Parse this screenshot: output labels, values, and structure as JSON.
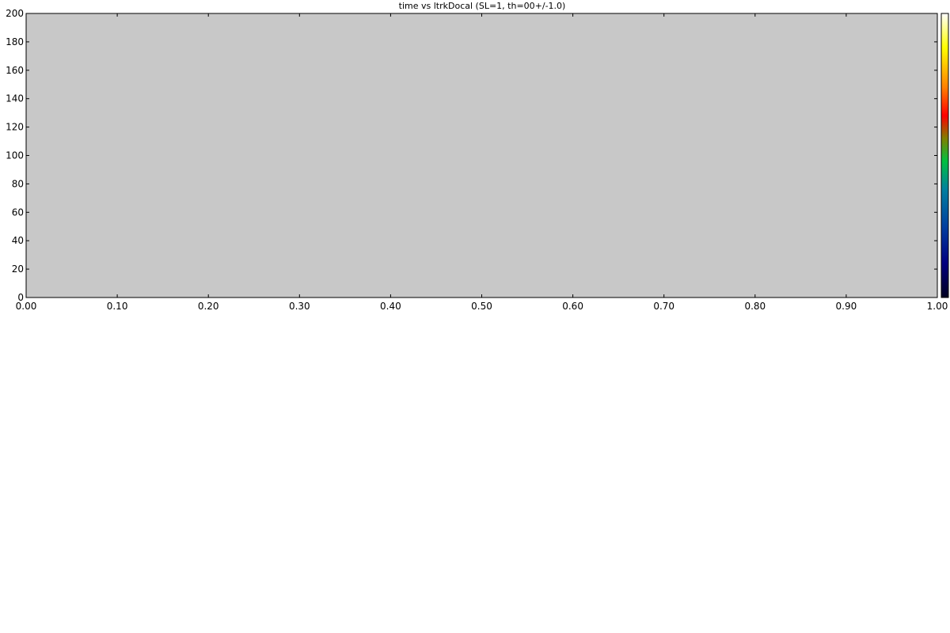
{
  "chart_data": {
    "type": "heatmap",
    "title": "time vs ltrkDocal (SL=1, th=00+/-1.0)",
    "xlabel": "",
    "ylabel": "",
    "xlim": [
      0,
      1
    ],
    "ylim": [
      0,
      200
    ],
    "x_ticks": [
      "0.00",
      "0.10",
      "0.20",
      "0.30",
      "0.40",
      "0.50",
      "0.60",
      "0.70",
      "0.80",
      "0.90",
      "1.00"
    ],
    "y_ticks": [
      "0",
      "20",
      "40",
      "60",
      "80",
      "100",
      "120",
      "140",
      "160",
      "180",
      "200"
    ],
    "grid": false,
    "values": [],
    "colors": {
      "plot_background": "#c8c8c8",
      "axis": "#000000",
      "colorbar": [
        "#000020",
        "#000080",
        "#0040a0",
        "#0080a0",
        "#00c040",
        "#808000",
        "#ff0000",
        "#ff8000",
        "#ffff00",
        "#ffffff"
      ]
    }
  }
}
